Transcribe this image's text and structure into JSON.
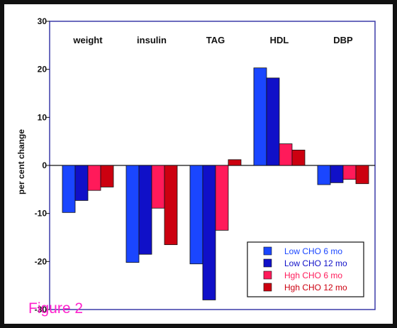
{
  "figure_label": "Figure 2",
  "chart_data": {
    "type": "bar",
    "ylabel": "per cent change",
    "ylim": [
      -30,
      30
    ],
    "yticks": [
      30,
      20,
      10,
      0,
      -10,
      -20,
      -30
    ],
    "categories": [
      "weight",
      "insulin",
      "TAG",
      "HDL",
      "DBP"
    ],
    "legend_position": "bottom-right",
    "grid": false,
    "series": [
      {
        "name": "Low CHO 6 mo",
        "color": "#1a46ff",
        "values": [
          -9.8,
          -20.2,
          -20.5,
          20.3,
          -4.0
        ]
      },
      {
        "name": "Low CHO 12 mo",
        "color": "#1010c8",
        "values": [
          -7.3,
          -18.5,
          -28.0,
          18.2,
          -3.6
        ]
      },
      {
        "name": "Hgh CHO 6 mo",
        "color": "#ff1a5a",
        "values": [
          -5.2,
          -8.9,
          -13.5,
          4.5,
          -2.9
        ]
      },
      {
        "name": "Hgh CHO 12 mo",
        "color": "#cc0010",
        "values": [
          -4.5,
          -16.5,
          1.2,
          3.2,
          -3.8
        ]
      }
    ]
  }
}
